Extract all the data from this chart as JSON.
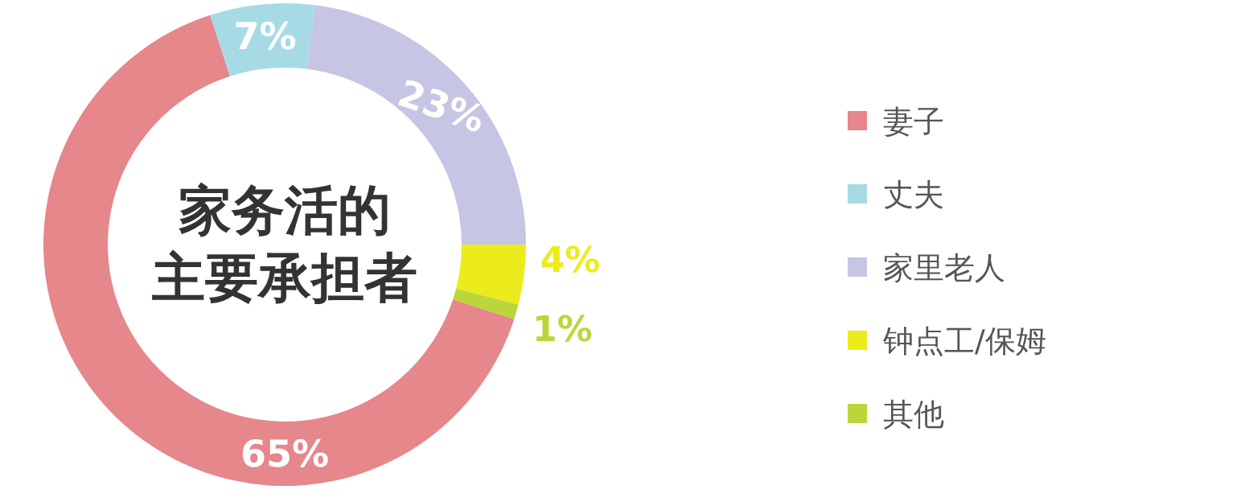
{
  "chart_data": {
    "type": "donut",
    "title": "家务活的",
    "subtitle": "主要承担者",
    "categories": [
      "妻子",
      "丈夫",
      "家里老人",
      "钟点工/保姆",
      "其他"
    ],
    "values": [
      65,
      7,
      23,
      4,
      1
    ],
    "colors": [
      "#e5878b",
      "#a6dbe6",
      "#c7c5e4",
      "#ecec1c",
      "#bcd63a"
    ],
    "value_labels": [
      "65%",
      "7%",
      "23%",
      "4%",
      "1%"
    ],
    "legend": "right"
  }
}
